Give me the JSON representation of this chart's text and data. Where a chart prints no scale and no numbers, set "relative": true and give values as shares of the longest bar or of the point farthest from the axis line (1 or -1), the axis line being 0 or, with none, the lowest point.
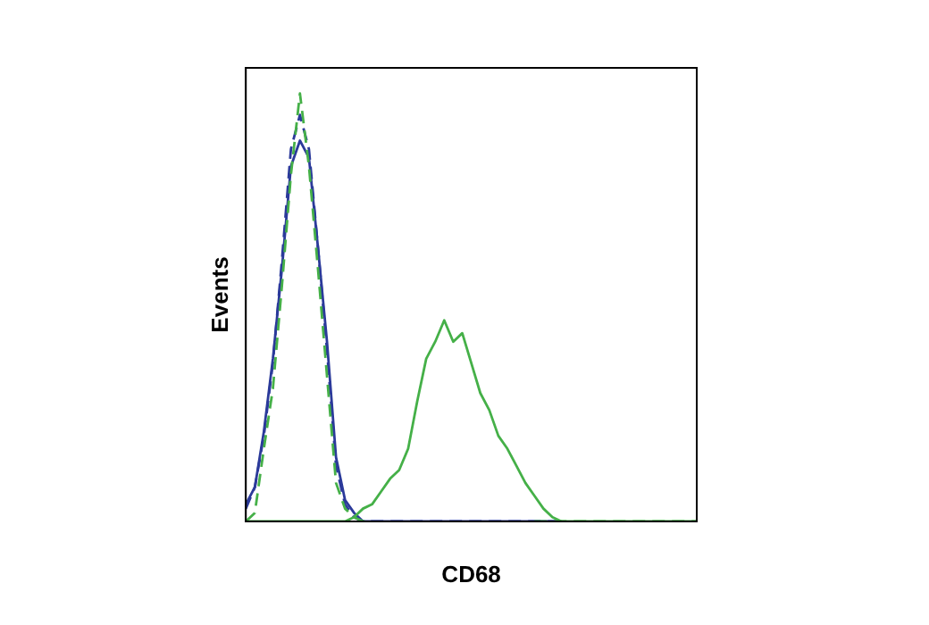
{
  "chart_data": {
    "type": "line",
    "relative": true,
    "xlabel": "CD68",
    "ylabel": "Events",
    "grid": false,
    "legend": false,
    "marker": "none",
    "categories": [
      null,
      null,
      null,
      null,
      null,
      null,
      null,
      null,
      null,
      null,
      null,
      null,
      null,
      null,
      null,
      null,
      null,
      null,
      null,
      null,
      null,
      null,
      null,
      null,
      null,
      null,
      null,
      null,
      null,
      null,
      null,
      null,
      null,
      null,
      null,
      null,
      null,
      null,
      null,
      null,
      null,
      null,
      null,
      null,
      null,
      null,
      null,
      null,
      null,
      null,
      null
    ],
    "series": [
      {
        "color": "#45b048",
        "line_style": "solid",
        "values": [
          0,
          0,
          0,
          0,
          0,
          0,
          0,
          0,
          0,
          0,
          0,
          0,
          0.01,
          0.03,
          0.04,
          0.07,
          0.1,
          0.12,
          0.17,
          0.28,
          0.38,
          0.42,
          0.47,
          0.42,
          0.44,
          0.37,
          0.3,
          0.26,
          0.2,
          0.17,
          0.13,
          0.09,
          0.06,
          0.03,
          0.01,
          0,
          0,
          0,
          0,
          0,
          0,
          0,
          0,
          0,
          0,
          0,
          0,
          0,
          0,
          0,
          0
        ]
      },
      {
        "color": "#45b048",
        "line_style": "dashed",
        "values": [
          0,
          0.02,
          0.17,
          0.31,
          0.55,
          0.81,
          1,
          0.83,
          0.59,
          0.34,
          0.09,
          0.03,
          0.01,
          0,
          0,
          null,
          null,
          null,
          null,
          null,
          null,
          null,
          null,
          null,
          null,
          null,
          null,
          null,
          null,
          null,
          null,
          null,
          0,
          0,
          0,
          0,
          0,
          0,
          0,
          0,
          0,
          0,
          0,
          0,
          0,
          0,
          0,
          0,
          0,
          0,
          0
        ]
      },
      {
        "color": "#2b3a9a",
        "line_style": "solid",
        "values": [
          0.04,
          0.08,
          0.21,
          0.38,
          0.59,
          0.83,
          0.89,
          0.85,
          0.64,
          0.42,
          0.15,
          0.05,
          0.02,
          0,
          0,
          0,
          0,
          0,
          0,
          0,
          0,
          0,
          0,
          0,
          0,
          0,
          0,
          0,
          0,
          0,
          0,
          0,
          0,
          0,
          0,
          0,
          null,
          null,
          null,
          null,
          null,
          null,
          null,
          null,
          null,
          null,
          null,
          null,
          null,
          null,
          null
        ]
      },
      {
        "color": "#2b3a9a",
        "line_style": "dashed",
        "values": [
          0.03,
          0.08,
          0.2,
          0.37,
          0.61,
          0.87,
          0.95,
          0.87,
          0.64,
          0.4,
          0.13,
          0.04,
          0.01,
          0,
          0,
          0,
          0,
          0,
          0,
          0,
          0,
          0,
          0,
          0,
          0,
          0,
          0,
          0,
          0,
          0,
          0,
          0,
          0,
          0,
          0,
          0,
          null,
          null,
          null,
          null,
          null,
          null,
          null,
          null,
          null,
          null,
          null,
          null,
          null,
          null,
          null
        ]
      }
    ]
  }
}
